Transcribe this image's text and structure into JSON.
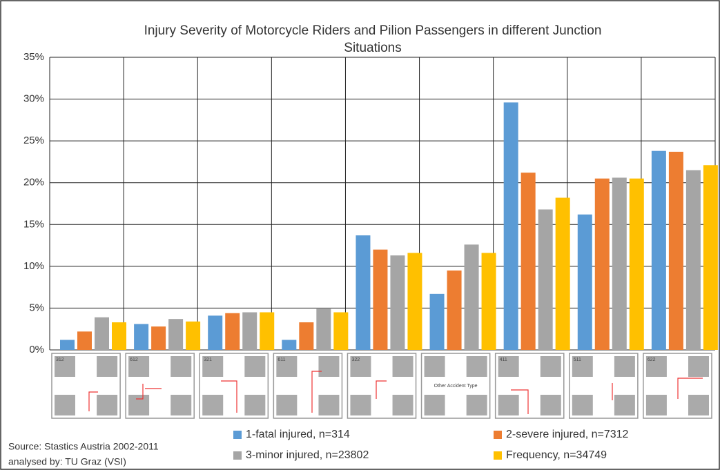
{
  "chart_data": {
    "type": "bar",
    "title": [
      "Injury Severity of Motorcycle Riders and Pilion Passengers in different Junction",
      "Situations"
    ],
    "categories": [
      "312",
      "612",
      "321",
      "611",
      "322",
      "Other Accident Type",
      "411",
      "511",
      "622"
    ],
    "series": [
      {
        "name": "1-fatal injured, n=314",
        "color": "#5b9bd5",
        "values": [
          1.2,
          3.1,
          4.1,
          1.2,
          13.7,
          6.7,
          29.6,
          16.2,
          23.8
        ]
      },
      {
        "name": "2-severe injured, n=7312",
        "color": "#ed7d31",
        "values": [
          2.2,
          2.8,
          4.4,
          3.3,
          12.0,
          9.5,
          21.2,
          20.5,
          23.7
        ]
      },
      {
        "name": "3-minor injured, n=23802",
        "color": "#a5a5a5",
        "values": [
          3.9,
          3.7,
          4.5,
          5.0,
          11.3,
          12.6,
          16.8,
          20.6,
          21.5
        ]
      },
      {
        "name": "Frequency, n=34749",
        "color": "#ffc000",
        "values": [
          3.3,
          3.4,
          4.5,
          4.5,
          11.6,
          11.6,
          18.2,
          20.5,
          22.1
        ]
      }
    ],
    "ylim": [
      0,
      35
    ],
    "yticks": [
      {
        "value": 0,
        "label": "0%"
      },
      {
        "value": 5,
        "label": "5%"
      },
      {
        "value": 10,
        "label": "10%"
      },
      {
        "value": 15,
        "label": "15%"
      },
      {
        "value": 20,
        "label": "20%"
      },
      {
        "value": 25,
        "label": "25%"
      },
      {
        "value": 30,
        "label": "30%"
      },
      {
        "value": 35,
        "label": "35%"
      }
    ],
    "grid": true,
    "source": [
      "Source: Stastics Austria 2002-2011",
      "analysed by: TU Graz (VSI)"
    ]
  }
}
